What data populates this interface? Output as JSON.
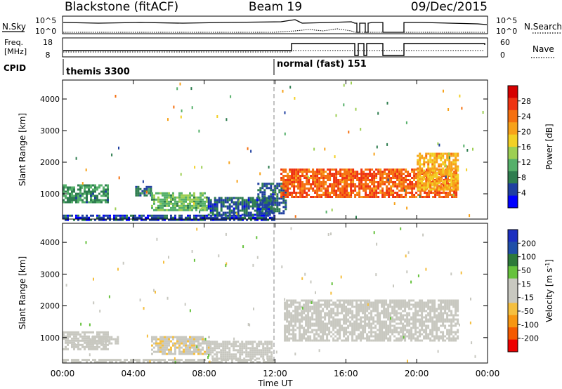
{
  "header": {
    "site": "Blackstone (fitACF)",
    "beam": "Beam 19",
    "date": "09/Dec/2015"
  },
  "top_panels": {
    "nsky_label": "N.Sky",
    "nsky_ticks": [
      "10^5",
      "10^0"
    ],
    "nsearch_label": "N.Search",
    "freq_label_line1": "Freq.",
    "freq_label_line2": "[MHz]",
    "freq_ticks": [
      "18",
      "8"
    ],
    "nave_label": "Nave",
    "nave_ticks": [
      "60",
      "0"
    ],
    "cpid_label": "CPID",
    "cpid_segments": [
      {
        "start_hour": 0,
        "label": "themis 3300"
      },
      {
        "start_hour": 12,
        "label": "normal (fast) 151"
      }
    ]
  },
  "colors": {
    "power_scale": [
      "#0000ff",
      "#1f3fa0",
      "#2e7d4f",
      "#55b06a",
      "#9dcf53",
      "#f2d025",
      "#f7a21a",
      "#f57010",
      "#ee3312",
      "#d60000"
    ],
    "velocity_scale": [
      "#ee0000",
      "#f45a00",
      "#f79612",
      "#f5bf3f",
      "#c8c8c0",
      "#c8c8c0",
      "#66c23d",
      "#2d7a3a",
      "#1f4fa8",
      "#1c2fc0"
    ],
    "ground_scatter": "#c0c0c0"
  },
  "chart_data": [
    {
      "type": "heatmap",
      "panel": "power",
      "ylabel": "Slant Range [km]",
      "yticks": [
        "1000",
        "2000",
        "3000",
        "4000"
      ],
      "ylim": [
        200,
        4600
      ],
      "colorbar_label": "Power [dB]",
      "colorbar_ticks": [
        "4",
        "8",
        "12",
        "16",
        "20",
        "24",
        "28"
      ],
      "colorbar_range": [
        0,
        32
      ],
      "regions": [
        {
          "t0": 0.0,
          "t1": 2.6,
          "r0": 700,
          "r1": 1300,
          "value": 9
        },
        {
          "t0": 4.1,
          "t1": 5.0,
          "r0": 950,
          "r1": 1250,
          "value": 7
        },
        {
          "t0": 5.0,
          "t1": 8.2,
          "r0": 500,
          "r1": 1050,
          "value": 12
        },
        {
          "t0": 8.2,
          "t1": 11.9,
          "r0": 330,
          "r1": 900,
          "value": 6
        },
        {
          "t0": 11.0,
          "t1": 12.6,
          "r0": 400,
          "r1": 1350,
          "value": 6
        },
        {
          "t0": 12.3,
          "t1": 22.2,
          "r0": 900,
          "r1": 1800,
          "value": 25
        },
        {
          "t0": 20.0,
          "t1": 22.3,
          "r0": 1100,
          "r1": 2300,
          "value": 20
        },
        {
          "t0": 0.0,
          "t1": 12.0,
          "r0": 200,
          "r1": 340,
          "value": 5
        }
      ]
    },
    {
      "type": "heatmap",
      "panel": "velocity",
      "xlabel": "Time UT",
      "xticks": [
        "00:00",
        "04:00",
        "08:00",
        "12:00",
        "16:00",
        "20:00",
        "00:00"
      ],
      "xlim": [
        0,
        24
      ],
      "ylabel": "Slant Range [km]",
      "yticks": [
        "1000",
        "2000",
        "3000",
        "4000"
      ],
      "ylim": [
        200,
        4600
      ],
      "colorbar_label": "Velocity [m s^-1]",
      "colorbar_ticks": [
        "200",
        "100",
        "50",
        "15",
        "-15",
        "-50",
        "-100",
        "-200"
      ],
      "colorbar_range": [
        -250,
        250
      ],
      "regions": [
        {
          "t0": 0.0,
          "t1": 2.6,
          "r0": 650,
          "r1": 1200,
          "value": -40
        },
        {
          "t0": 1.4,
          "t1": 3.1,
          "r0": 800,
          "r1": 1050,
          "value": 0
        },
        {
          "t0": 5.0,
          "t1": 8.3,
          "r0": 500,
          "r1": 1050,
          "value": -45
        },
        {
          "t0": 8.3,
          "t1": 11.8,
          "r0": 330,
          "r1": 900,
          "value": -30
        },
        {
          "t0": 12.5,
          "t1": 22.3,
          "r0": 900,
          "r1": 2200,
          "value": 0
        },
        {
          "t0": 0.0,
          "t1": 12.0,
          "r0": 200,
          "r1": 330,
          "value": 30
        }
      ]
    }
  ]
}
